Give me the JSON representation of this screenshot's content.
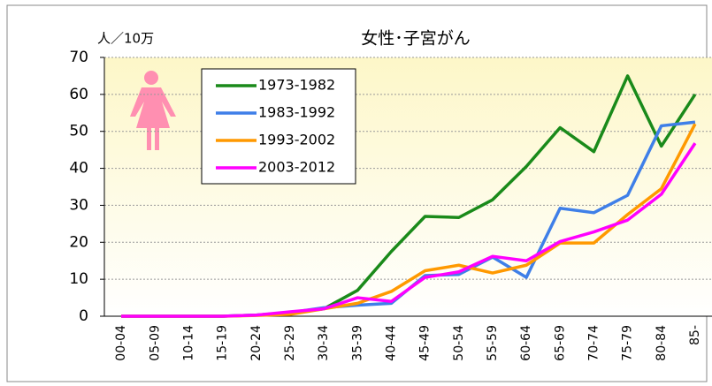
{
  "chart_data": {
    "type": "line",
    "title": "女性･子宮がん",
    "y_axis_label": "人／10万",
    "categories": [
      "00-04",
      "05-09",
      "10-14",
      "15-19",
      "20-24",
      "25-29",
      "30-34",
      "35-39",
      "40-44",
      "45-49",
      "50-54",
      "55-59",
      "60-64",
      "65-69",
      "70-74",
      "75-79",
      "80-84",
      "85-"
    ],
    "series": [
      {
        "name": "1973-1982",
        "color": "#1a8a1a",
        "values": [
          0,
          0,
          0,
          0,
          0.3,
          1,
          2,
          7,
          17.5,
          27,
          26.7,
          31.5,
          40.5,
          51,
          44.5,
          65,
          46,
          60
        ]
      },
      {
        "name": "1983-1992",
        "color": "#3f7fe8",
        "values": [
          0,
          0,
          0,
          0,
          0.3,
          1,
          2.3,
          3,
          3.5,
          11,
          11.3,
          16,
          10.5,
          29.2,
          28,
          32.7,
          51.5,
          52.5
        ]
      },
      {
        "name": "1993-2002",
        "color": "#ff9900",
        "values": [
          0,
          0,
          0,
          0,
          0.2,
          0.5,
          2,
          3.5,
          6.7,
          12.3,
          13.8,
          11.7,
          13.8,
          19.8,
          19.8,
          27.5,
          34.5,
          52
        ]
      },
      {
        "name": "2003-2012",
        "color": "#ff00ff",
        "values": [
          0,
          0,
          0,
          0,
          0.3,
          1.2,
          2,
          5,
          4,
          10.5,
          12,
          16.2,
          15,
          20.2,
          22.8,
          26,
          33,
          46.8
        ]
      }
    ],
    "ylim": [
      0,
      70
    ],
    "yticks": [
      0,
      10,
      20,
      30,
      40,
      50,
      60,
      70
    ],
    "grid": true
  }
}
